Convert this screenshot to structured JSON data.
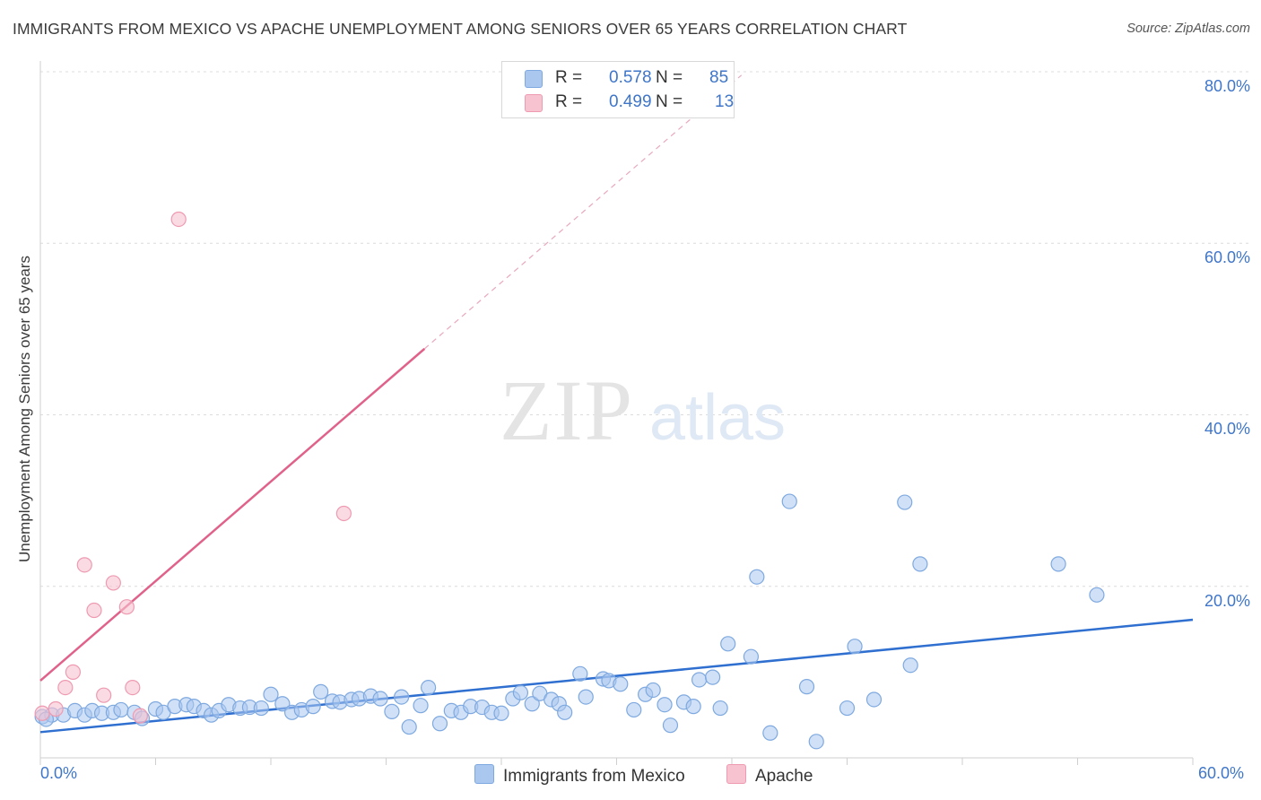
{
  "title": "IMMIGRANTS FROM MEXICO VS APACHE UNEMPLOYMENT AMONG SENIORS OVER 65 YEARS CORRELATION CHART",
  "source": "Source: ZipAtlas.com",
  "watermark": {
    "zip": "ZIP",
    "atlas": "atlas"
  },
  "colors": {
    "blue_fill": "#a9c7ef",
    "blue_stroke": "#7ea9e0",
    "blue_line": "#2f6fd0",
    "pink_fill": "#f8c3d1",
    "pink_stroke": "#ee9ab1",
    "pink_line": "#e0628a",
    "accent_text": "#3f76c9",
    "grid": "#dcdcdc"
  },
  "legend": {
    "rows": [
      {
        "r_label": "R =",
        "r_value": "0.578",
        "n_label": "N =",
        "n_value": "85"
      },
      {
        "r_label": "R =",
        "r_value": "0.499",
        "n_label": "N =",
        "n_value": "13"
      }
    ]
  },
  "bottom_legend": {
    "series1": "Immigrants from Mexico",
    "series2": "Apache"
  },
  "chart_data": {
    "type": "scatter",
    "title": "IMMIGRANTS FROM MEXICO VS APACHE UNEMPLOYMENT AMONG SENIORS OVER 65 YEARS CORRELATION CHART",
    "xlabel": "",
    "ylabel": "Unemployment Among Seniors over 65 years",
    "xlim": [
      0,
      60
    ],
    "ylim": [
      0,
      80
    ],
    "x_tick_labels": [
      "0.0%",
      "60.0%"
    ],
    "y_tick_labels": [
      "20.0%",
      "40.0%",
      "60.0%",
      "80.0%"
    ],
    "y_ticks": [
      20,
      40,
      60,
      80
    ],
    "grid": true,
    "legend_position": "top-center",
    "series": [
      {
        "name": "Immigrants from Mexico",
        "color": "#a9c7ef",
        "R": 0.578,
        "N": 85,
        "trend": {
          "x": [
            0,
            60
          ],
          "y": [
            3.0,
            16.1
          ]
        },
        "points": [
          [
            0.1,
            4.8
          ],
          [
            0.6,
            5.0
          ],
          [
            1.2,
            5.0
          ],
          [
            1.8,
            5.5
          ],
          [
            2.3,
            5.0
          ],
          [
            2.7,
            5.5
          ],
          [
            3.2,
            5.2
          ],
          [
            3.8,
            5.3
          ],
          [
            4.2,
            5.6
          ],
          [
            4.9,
            5.3
          ],
          [
            5.3,
            4.6
          ],
          [
            6.0,
            5.7
          ],
          [
            6.4,
            5.3
          ],
          [
            7.0,
            6.0
          ],
          [
            7.6,
            6.2
          ],
          [
            8.0,
            6.0
          ],
          [
            8.5,
            5.5
          ],
          [
            8.9,
            5.0
          ],
          [
            9.3,
            5.5
          ],
          [
            9.8,
            6.2
          ],
          [
            10.4,
            5.8
          ],
          [
            10.9,
            5.9
          ],
          [
            11.5,
            5.8
          ],
          [
            12.0,
            7.4
          ],
          [
            12.6,
            6.3
          ],
          [
            13.1,
            5.3
          ],
          [
            13.6,
            5.6
          ],
          [
            14.2,
            6.0
          ],
          [
            14.6,
            7.7
          ],
          [
            15.2,
            6.6
          ],
          [
            15.6,
            6.5
          ],
          [
            16.2,
            6.8
          ],
          [
            16.6,
            6.9
          ],
          [
            17.2,
            7.2
          ],
          [
            17.7,
            6.9
          ],
          [
            18.3,
            5.4
          ],
          [
            18.8,
            7.1
          ],
          [
            19.2,
            3.6
          ],
          [
            19.8,
            6.1
          ],
          [
            20.2,
            8.2
          ],
          [
            20.8,
            4.0
          ],
          [
            21.4,
            5.5
          ],
          [
            21.9,
            5.3
          ],
          [
            22.4,
            6.0
          ],
          [
            23.0,
            5.9
          ],
          [
            23.5,
            5.3
          ],
          [
            24.0,
            5.2
          ],
          [
            24.6,
            6.9
          ],
          [
            25.0,
            7.6
          ],
          [
            25.6,
            6.3
          ],
          [
            26.0,
            7.5
          ],
          [
            26.6,
            6.8
          ],
          [
            27.0,
            6.3
          ],
          [
            27.3,
            5.3
          ],
          [
            28.1,
            9.8
          ],
          [
            28.4,
            7.1
          ],
          [
            29.3,
            9.2
          ],
          [
            29.6,
            9.0
          ],
          [
            30.2,
            8.6
          ],
          [
            30.9,
            5.6
          ],
          [
            31.5,
            7.4
          ],
          [
            31.9,
            7.9
          ],
          [
            32.5,
            6.2
          ],
          [
            32.8,
            3.8
          ],
          [
            33.5,
            6.5
          ],
          [
            34.0,
            6.0
          ],
          [
            34.3,
            9.1
          ],
          [
            35.0,
            9.4
          ],
          [
            35.4,
            5.8
          ],
          [
            35.8,
            13.3
          ],
          [
            37.0,
            11.8
          ],
          [
            37.3,
            21.1
          ],
          [
            38.0,
            2.9
          ],
          [
            39.0,
            29.9
          ],
          [
            39.9,
            8.3
          ],
          [
            40.4,
            1.9
          ],
          [
            42.0,
            5.8
          ],
          [
            42.4,
            13.0
          ],
          [
            43.4,
            6.8
          ],
          [
            45.0,
            29.8
          ],
          [
            45.3,
            10.8
          ],
          [
            45.8,
            22.6
          ],
          [
            53.0,
            22.6
          ],
          [
            55.0,
            19.0
          ],
          [
            0.3,
            4.5
          ]
        ]
      },
      {
        "name": "Apache",
        "color": "#f8c3d1",
        "R": 0.499,
        "N": 13,
        "trend": {
          "x": [
            0,
            20.0
          ],
          "y": [
            9.0,
            47.7
          ]
        },
        "trend_extension": {
          "x": [
            20.0,
            36.5
          ],
          "y": [
            47.7,
            79.6
          ]
        },
        "points": [
          [
            0.1,
            5.2
          ],
          [
            0.8,
            5.7
          ],
          [
            1.3,
            8.2
          ],
          [
            1.7,
            10.0
          ],
          [
            2.3,
            22.5
          ],
          [
            2.8,
            17.2
          ],
          [
            3.3,
            7.3
          ],
          [
            3.8,
            20.4
          ],
          [
            4.5,
            17.6
          ],
          [
            4.8,
            8.2
          ],
          [
            5.2,
            4.9
          ],
          [
            7.2,
            62.8
          ],
          [
            15.8,
            28.5
          ]
        ]
      }
    ]
  }
}
